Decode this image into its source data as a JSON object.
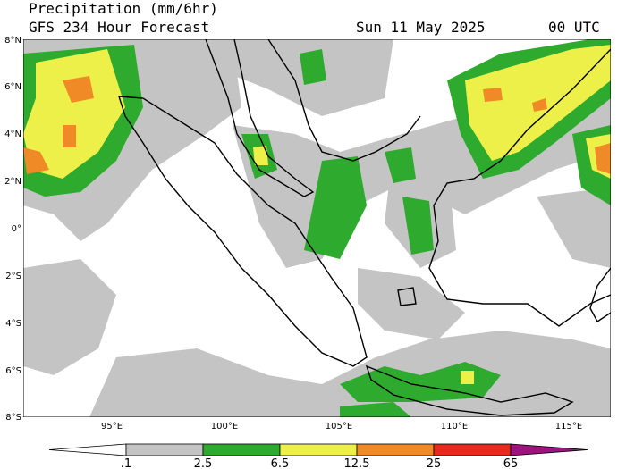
{
  "header": {
    "title": "Precipitation (mm/6hr)",
    "subtitle": "GFS 234 Hour Forecast",
    "date": "Sun 11 May 2025",
    "time": "00 UTC"
  },
  "map": {
    "lat_labels": [
      "8°N",
      "6°N",
      "4°N",
      "2°N",
      "0°",
      "2°S",
      "4°S",
      "6°S",
      "8°S"
    ],
    "lon_labels": [
      "95°E",
      "100°E",
      "105°E",
      "110°E",
      "115°E"
    ]
  },
  "colorbar": {
    "labels": [
      ".1",
      "2.5",
      "6.5",
      "12.5",
      "25",
      "65"
    ],
    "colors": [
      "#ffffff",
      "#c4c4c4",
      "#2eaa2e",
      "#eef04a",
      "#f08a26",
      "#e82a1e",
      "#9c1480"
    ]
  }
}
